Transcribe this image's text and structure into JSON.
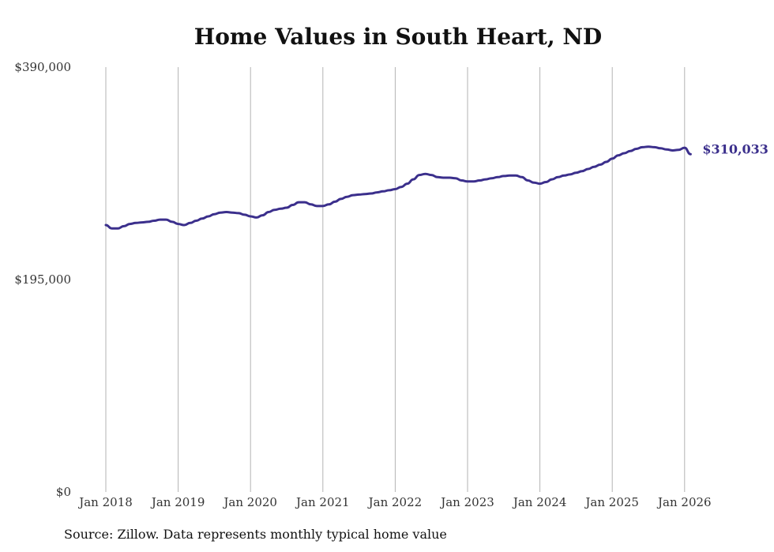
{
  "chart_data": {
    "type": "line",
    "title": "Home Values in South Heart, ND",
    "xlabel": "",
    "ylabel": "",
    "ylim": [
      0,
      390000
    ],
    "y_ticks": [
      {
        "value": 0,
        "label": "$0"
      },
      {
        "value": 195000,
        "label": "$195,000"
      },
      {
        "value": 390000,
        "label": "$390,000"
      }
    ],
    "x_ticks": [
      "Jan 2018",
      "Jan 2019",
      "Jan 2020",
      "Jan 2021",
      "Jan 2022",
      "Jan 2023",
      "Jan 2024",
      "Jan 2025",
      "Jan 2026"
    ],
    "grid": "vertical",
    "line_color": "#3b2f8c",
    "series": [
      {
        "x": [
          "2018-01",
          "2018-02",
          "2018-03",
          "2018-04",
          "2018-05",
          "2018-06",
          "2018-07",
          "2018-08",
          "2018-09",
          "2018-10",
          "2018-11",
          "2018-12",
          "2019-01",
          "2019-02",
          "2019-03",
          "2019-04",
          "2019-05",
          "2019-06",
          "2019-07",
          "2019-08",
          "2019-09",
          "2019-10",
          "2019-11",
          "2019-12",
          "2020-01",
          "2020-02",
          "2020-03",
          "2020-04",
          "2020-05",
          "2020-06",
          "2020-07",
          "2020-08",
          "2020-09",
          "2020-10",
          "2020-11",
          "2020-12",
          "2021-01",
          "2021-02",
          "2021-03",
          "2021-04",
          "2021-05",
          "2021-06",
          "2021-07",
          "2021-08",
          "2021-09",
          "2021-10",
          "2021-11",
          "2021-12",
          "2022-01",
          "2022-02",
          "2022-03",
          "2022-04",
          "2022-05",
          "2022-06",
          "2022-07",
          "2022-08",
          "2022-09",
          "2022-10",
          "2022-11",
          "2022-12",
          "2023-01",
          "2023-02",
          "2023-03",
          "2023-04",
          "2023-05",
          "2023-06",
          "2023-07",
          "2023-08",
          "2023-09",
          "2023-10",
          "2023-11",
          "2023-12",
          "2024-01",
          "2024-02",
          "2024-03",
          "2024-04",
          "2024-05",
          "2024-06",
          "2024-07",
          "2024-08",
          "2024-09",
          "2024-10",
          "2024-11",
          "2024-12",
          "2025-01",
          "2025-02",
          "2025-03",
          "2025-04",
          "2025-05",
          "2025-06",
          "2025-07",
          "2025-08",
          "2025-09",
          "2025-10",
          "2025-11",
          "2025-12",
          "2026-01",
          "2026-02"
        ],
        "values": [
          245000,
          242000,
          242000,
          244000,
          246000,
          247000,
          247500,
          248000,
          249000,
          250000,
          250000,
          248000,
          246000,
          245000,
          247000,
          249000,
          251000,
          253000,
          255000,
          256500,
          257000,
          256500,
          256000,
          254500,
          253000,
          252000,
          254000,
          257000,
          259000,
          260000,
          261000,
          263500,
          266000,
          266000,
          264000,
          262500,
          262500,
          264000,
          266500,
          269000,
          271000,
          272500,
          273000,
          273500,
          274000,
          275000,
          276000,
          277000,
          278000,
          280000,
          283000,
          287000,
          291000,
          292000,
          291000,
          289000,
          288500,
          288500,
          288000,
          286000,
          285000,
          285000,
          286000,
          287000,
          288000,
          289000,
          290000,
          290500,
          290500,
          289000,
          286000,
          284000,
          283000,
          284500,
          287000,
          289000,
          290500,
          291500,
          293000,
          294500,
          296500,
          298500,
          300500,
          303000,
          306000,
          309000,
          311000,
          313000,
          315000,
          316500,
          317000,
          316500,
          315500,
          314500,
          313500,
          314000,
          316000,
          310033
        ],
        "end_label": "$310,033"
      }
    ]
  },
  "source": "Source: Zillow. Data represents monthly typical home value"
}
